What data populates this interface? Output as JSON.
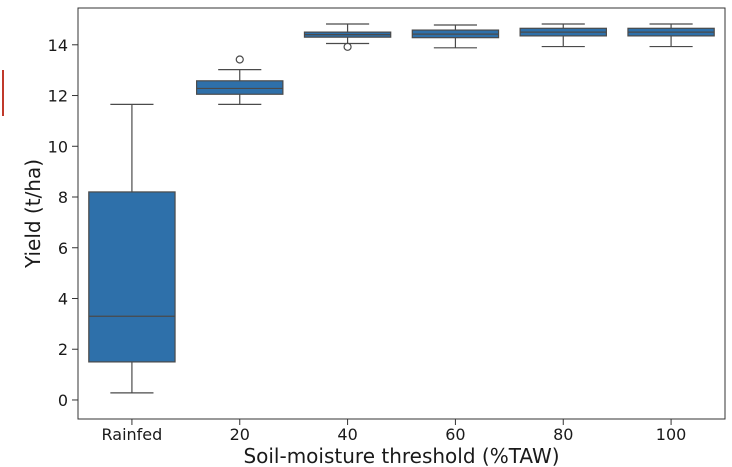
{
  "chart_data": {
    "type": "box",
    "xlabel": "Soil-moisture threshold (%TAW)",
    "ylabel": "Yield (t/ha)",
    "categories": [
      "Rainfed",
      "20",
      "40",
      "60",
      "80",
      "100"
    ],
    "ylim": [
      -0.75,
      15.45
    ],
    "yticks": [
      0,
      2,
      4,
      6,
      8,
      10,
      12,
      14
    ],
    "grid": false,
    "colors": {
      "box_fill": "#2e70aa",
      "line": "#4a4a4a",
      "outlier": "#4a4a4a",
      "marker": "#c0392b"
    },
    "boxes": [
      {
        "category": "Rainfed",
        "whisker_low": 0.28,
        "q1": 1.5,
        "median": 3.3,
        "q3": 8.2,
        "whisker_high": 11.65,
        "outliers": []
      },
      {
        "category": "20",
        "whisker_low": 11.65,
        "q1": 12.05,
        "median": 12.28,
        "q3": 12.58,
        "whisker_high": 13.02,
        "outliers": [
          13.42
        ]
      },
      {
        "category": "40",
        "whisker_low": 14.05,
        "q1": 14.3,
        "median": 14.4,
        "q3": 14.5,
        "whisker_high": 14.82,
        "outliers": [
          13.92
        ]
      },
      {
        "category": "60",
        "whisker_low": 13.88,
        "q1": 14.28,
        "median": 14.42,
        "q3": 14.58,
        "whisker_high": 14.78,
        "outliers": []
      },
      {
        "category": "80",
        "whisker_low": 13.93,
        "q1": 14.35,
        "median": 14.5,
        "q3": 14.65,
        "whisker_high": 14.82,
        "outliers": []
      },
      {
        "category": "100",
        "whisker_low": 13.93,
        "q1": 14.35,
        "median": 14.5,
        "q3": 14.65,
        "whisker_high": 14.82,
        "outliers": []
      }
    ]
  }
}
